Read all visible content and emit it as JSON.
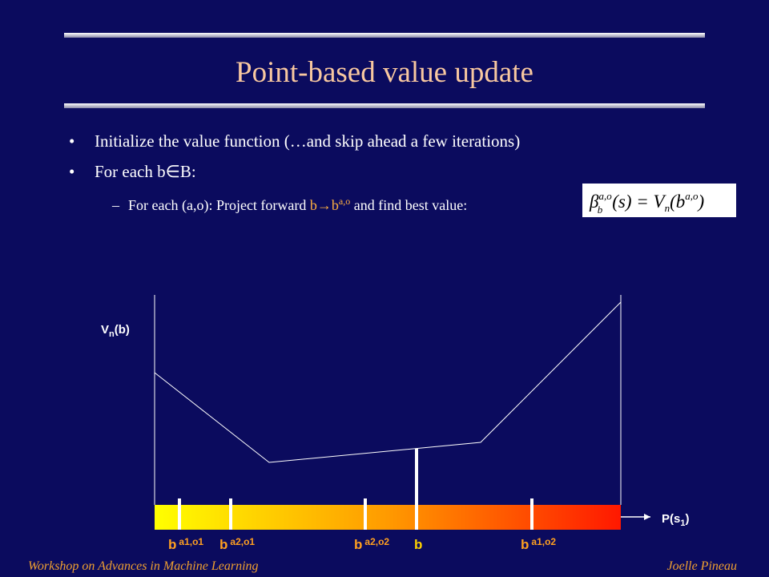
{
  "header": {
    "title": "Point-based value update"
  },
  "bullets": [
    {
      "marker": "•",
      "text": "Initialize the value function (…and skip ahead a few iterations)"
    },
    {
      "marker": "•",
      "text": "For each b∈B:"
    }
  ],
  "sub_bullet": {
    "marker": "–",
    "prefix": "For each (a,o): Project forward ",
    "highlight": "b→b",
    "highlight_sup": "a,o",
    "suffix": " and find best value:"
  },
  "equation": {
    "beta": "β",
    "beta_sup": "a,o",
    "beta_sub": "b",
    "middle": "(s) = V",
    "v_sub": "n",
    "rhs_open": "(b",
    "rhs_sup": "a,o",
    "rhs_close": ")"
  },
  "diagram": {
    "y_label": {
      "main": "V",
      "sub": "n",
      "rest": "(b)"
    },
    "x_label": {
      "main": "P(s",
      "sub": "1",
      "rest": ")"
    },
    "points": [
      {
        "base": "b",
        "sup": "a1,o1"
      },
      {
        "base": "b",
        "sup": "a2,o1"
      },
      {
        "base": "b",
        "sup": "a2,o2"
      },
      {
        "base": "b"
      },
      {
        "base": "b",
        "sup": "a1,o2"
      }
    ]
  },
  "footer": {
    "left": "Workshop on Advances in Machine Learning",
    "right": "Joelle Pineau"
  }
}
